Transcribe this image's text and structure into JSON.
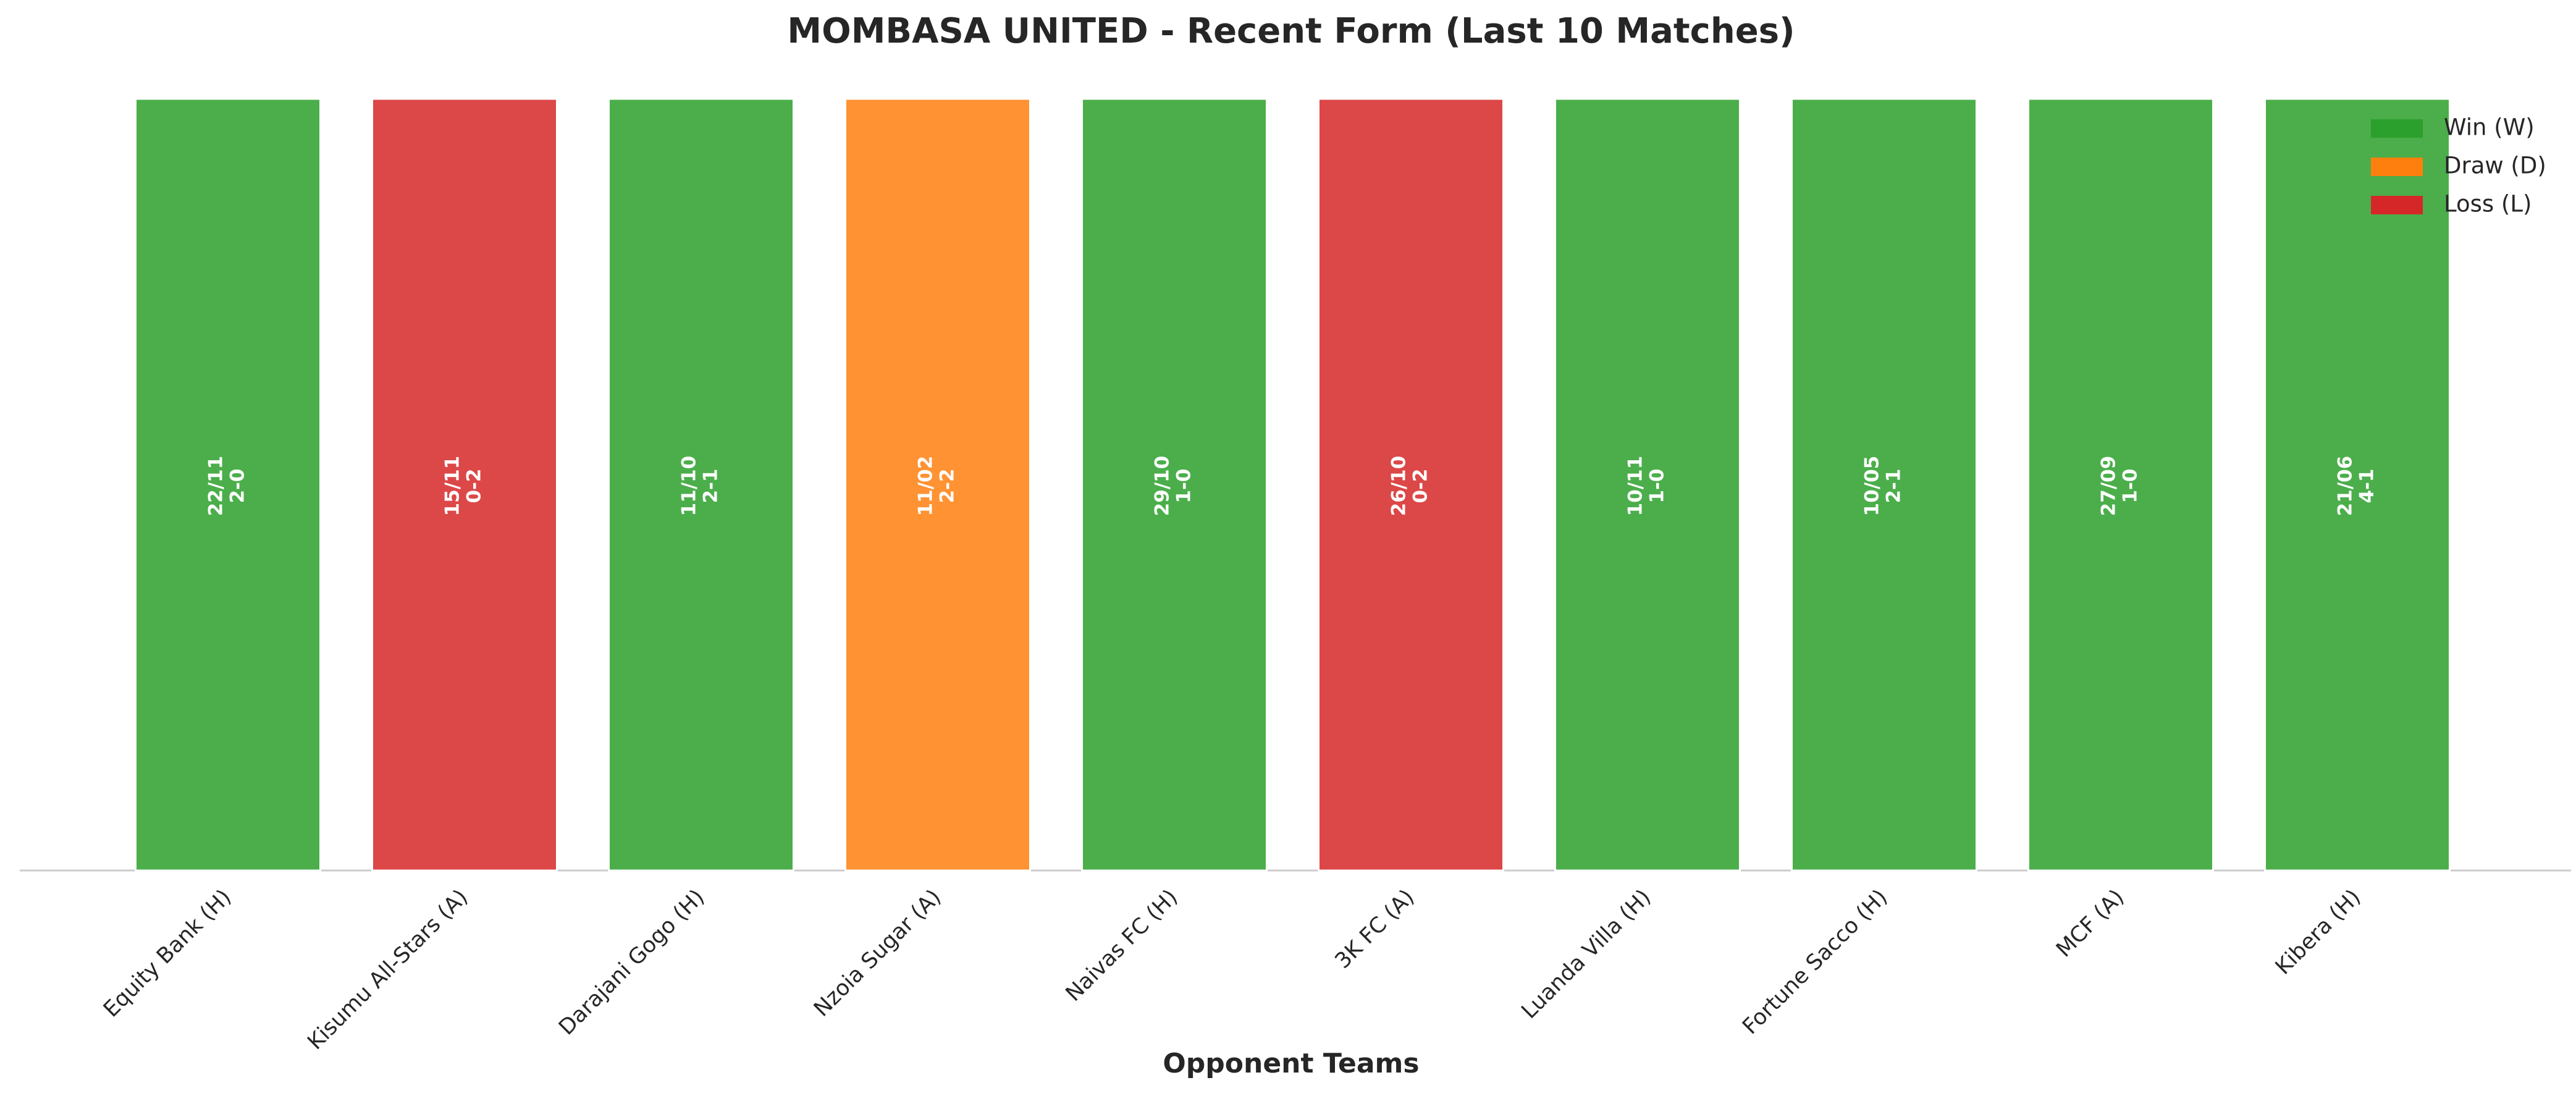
{
  "chart_data": {
    "type": "bar",
    "title": "MOMBASA UNITED - Recent Form (Last 10 Matches)",
    "x_label": "Opponent Teams",
    "categories": [
      "Equity Bank (H)",
      "Kisumu All-Stars (A)",
      "Darajani Gogo (H)",
      "Nzoia Sugar (A)",
      "Naivas FC (H)",
      "3K FC (A)",
      "Luanda Villa (H)",
      "Fortune Sacco (H)",
      "MCF (A)",
      "Kibera (H)"
    ],
    "dates": [
      "22/11",
      "15/11",
      "11/10",
      "11/02",
      "29/10",
      "26/10",
      "10/11",
      "10/05",
      "27/09",
      "21/06"
    ],
    "scores": [
      "2-0",
      "0-2",
      "2-1",
      "2-2",
      "1-0",
      "0-2",
      "1-0",
      "2-1",
      "1-0",
      "4-1"
    ],
    "series": [
      {
        "name": "Win (W)",
        "color": "#2ca02c",
        "values": [
          1,
          null,
          1,
          null,
          1,
          null,
          1,
          1,
          1,
          1
        ]
      },
      {
        "name": "Draw (D)",
        "color": "#ff7f0e",
        "values": [
          null,
          null,
          null,
          1,
          null,
          null,
          null,
          null,
          null,
          null
        ]
      },
      {
        "name": "Loss (L)",
        "color": "#d62728",
        "values": [
          null,
          1,
          null,
          null,
          null,
          1,
          null,
          null,
          null,
          null
        ]
      }
    ],
    "ylim": [
      0,
      1
    ],
    "legend": "upper right"
  }
}
